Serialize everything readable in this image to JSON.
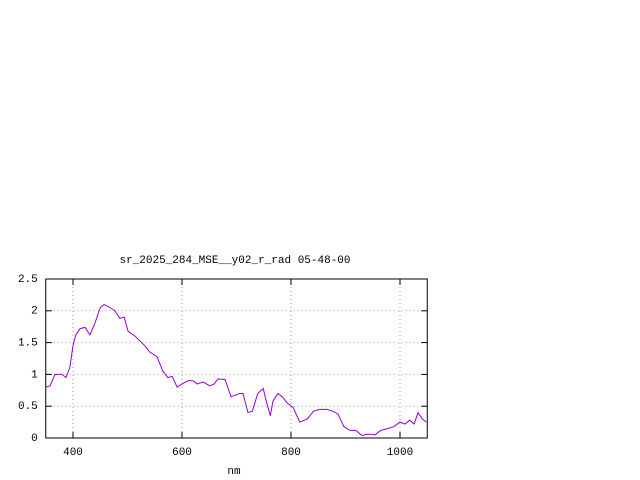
{
  "chart_data": {
    "type": "line",
    "title": "sr_2025_284_MSE__y02_r_rad 05-48-00",
    "x_label": "nm",
    "x": [
      350,
      358,
      367,
      380,
      387,
      394,
      400,
      405,
      413,
      422,
      431,
      440,
      450,
      457,
      468,
      477,
      486,
      494,
      501,
      514,
      532,
      541,
      554,
      565,
      574,
      582,
      591,
      600,
      611,
      620,
      628,
      639,
      651,
      659,
      666,
      679,
      690,
      706,
      712,
      721,
      729,
      739,
      749,
      754,
      762,
      767,
      776,
      784,
      793,
      804,
      816,
      830,
      841,
      853,
      866,
      877,
      886,
      897,
      908,
      919,
      930,
      941,
      954,
      965,
      978,
      989,
      1000,
      1009,
      1018,
      1026,
      1033,
      1041,
      1048
    ],
    "series": [
      {
        "color": "#9400d3",
        "values": [
          0.8,
          0.82,
          1.0,
          1.0,
          0.95,
          1.1,
          1.45,
          1.62,
          1.72,
          1.74,
          1.62,
          1.8,
          2.05,
          2.1,
          2.05,
          2.0,
          1.88,
          1.9,
          1.68,
          1.6,
          1.45,
          1.35,
          1.28,
          1.05,
          0.95,
          0.97,
          0.8,
          0.85,
          0.9,
          0.9,
          0.85,
          0.88,
          0.82,
          0.85,
          0.93,
          0.92,
          0.65,
          0.7,
          0.7,
          0.4,
          0.42,
          0.7,
          0.78,
          0.6,
          0.35,
          0.58,
          0.7,
          0.65,
          0.55,
          0.48,
          0.25,
          0.3,
          0.42,
          0.45,
          0.45,
          0.42,
          0.38,
          0.18,
          0.12,
          0.12,
          0.04,
          0.06,
          0.05,
          0.12,
          0.15,
          0.18,
          0.25,
          0.22,
          0.28,
          0.22,
          0.4,
          0.3,
          0.25
        ]
      }
    ],
    "xlim": [
      350,
      1050
    ],
    "ylim": [
      0,
      2.5
    ],
    "xticks": [
      400,
      600,
      800,
      1000
    ],
    "yticks": [
      0,
      0.5,
      1,
      1.5,
      2,
      2.5
    ],
    "grid": true
  }
}
